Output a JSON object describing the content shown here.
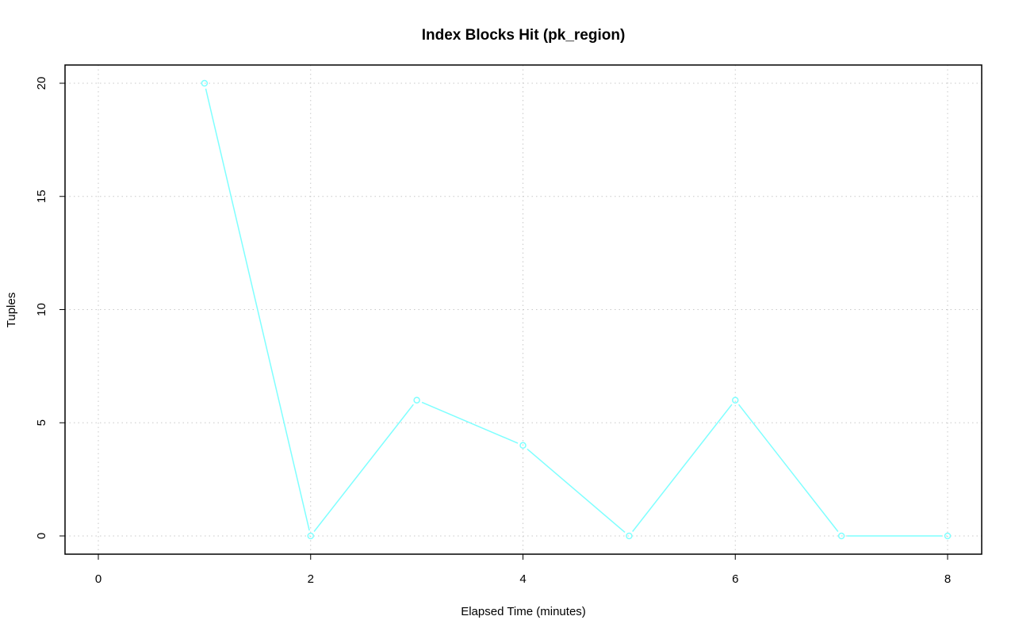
{
  "chart_data": {
    "type": "line",
    "title": "Index Blocks Hit (pk_region)",
    "xlabel": "Elapsed Time (minutes)",
    "ylabel": "Tuples",
    "x": [
      1,
      2,
      3,
      4,
      5,
      6,
      7,
      8
    ],
    "series": [
      {
        "values": [
          20,
          0,
          6,
          4,
          0,
          6,
          0,
          0
        ],
        "color": "#7fffff",
        "marker": "open-circle"
      }
    ],
    "xlim": [
      0,
      8
    ],
    "ylim": [
      0,
      20
    ],
    "xticks": [
      "0",
      "2",
      "4",
      "6",
      "8"
    ],
    "yticks": [
      "0",
      "5",
      "10",
      "15",
      "20"
    ],
    "grid": true,
    "grid_color": "#c8c8c8"
  }
}
